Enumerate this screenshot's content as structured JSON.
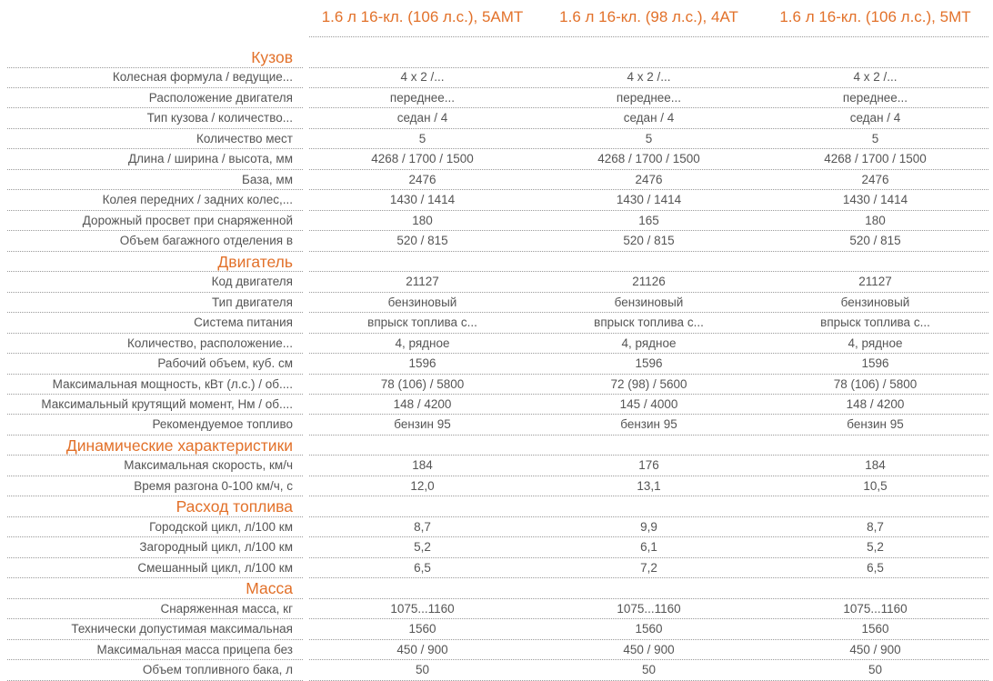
{
  "columns": [
    "1.6 л 16-кл. (106 л.с.), 5АМТ",
    "1.6 л 16-кл. (98 л.с.), 4АТ",
    "1.6 л 16-кл. (106 л.с.), 5МТ"
  ],
  "accent_color": "#e2712a",
  "sections": [
    {
      "title": "Кузов",
      "rows": [
        {
          "label": "Колесная формула / ведущие...",
          "values": [
            "4 x 2 /...",
            "4 x 2 /...",
            "4 x 2 /..."
          ]
        },
        {
          "label": "Расположение двигателя",
          "values": [
            "переднее...",
            "переднее...",
            "переднее..."
          ]
        },
        {
          "label": "Тип кузова / количество...",
          "values": [
            "седан / 4",
            "седан / 4",
            "седан / 4"
          ]
        },
        {
          "label": "Количество мест",
          "values": [
            "5",
            "5",
            "5"
          ]
        },
        {
          "label": "Длина / ширина / высота, мм",
          "values": [
            "4268 / 1700 / 1500",
            "4268 / 1700 / 1500",
            "4268 / 1700 / 1500"
          ]
        },
        {
          "label": "База, мм",
          "values": [
            "2476",
            "2476",
            "2476"
          ]
        },
        {
          "label": "Колея передних / задних колес,...",
          "values": [
            "1430 / 1414",
            "1430 / 1414",
            "1430 / 1414"
          ]
        },
        {
          "label": "Дорожный просвет при снаряженной",
          "values": [
            "180",
            "165",
            "180"
          ]
        },
        {
          "label": "Объем багажного отделения в",
          "values": [
            "520 / 815",
            "520 / 815",
            "520 / 815"
          ]
        }
      ]
    },
    {
      "title": "Двигатель",
      "rows": [
        {
          "label": "Код двигателя",
          "values": [
            "21127",
            "21126",
            "21127"
          ]
        },
        {
          "label": "Тип двигателя",
          "values": [
            "бензиновый",
            "бензиновый",
            "бензиновый"
          ]
        },
        {
          "label": "Система питания",
          "values": [
            "впрыск топлива с...",
            "впрыск топлива с...",
            "впрыск топлива с..."
          ]
        },
        {
          "label": "Количество, расположение...",
          "values": [
            "4, рядное",
            "4, рядное",
            "4, рядное"
          ]
        },
        {
          "label": "Рабочий объем, куб. см",
          "values": [
            "1596",
            "1596",
            "1596"
          ]
        },
        {
          "label": "Максимальная мощность, кВт (л.с.) / об....",
          "values": [
            "78 (106) / 5800",
            "72 (98) / 5600",
            "78 (106) / 5800"
          ]
        },
        {
          "label": "Максимальный крутящий момент, Нм / об....",
          "values": [
            "148 / 4200",
            "145 / 4000",
            "148 / 4200"
          ]
        },
        {
          "label": "Рекомендуемое топливо",
          "values": [
            "бензин 95",
            "бензин 95",
            "бензин 95"
          ]
        }
      ]
    },
    {
      "title": "Динамические характеристики",
      "rows": [
        {
          "label": "Максимальная скорость, км/ч",
          "values": [
            "184",
            "176",
            "184"
          ]
        },
        {
          "label": "Время разгона 0-100 км/ч, с",
          "values": [
            "12,0",
            "13,1",
            "10,5"
          ]
        }
      ]
    },
    {
      "title": "Расход топлива",
      "rows": [
        {
          "label": "Городской цикл, л/100 км",
          "values": [
            "8,7",
            "9,9",
            "8,7"
          ]
        },
        {
          "label": "Загородный цикл, л/100 км",
          "values": [
            "5,2",
            "6,1",
            "5,2"
          ]
        },
        {
          "label": "Смешанный цикл, л/100 км",
          "values": [
            "6,5",
            "7,2",
            "6,5"
          ]
        }
      ]
    },
    {
      "title": "Масса",
      "rows": [
        {
          "label": "Снаряженная масса, кг",
          "values": [
            "1075...1160",
            "1075...1160",
            "1075...1160"
          ]
        },
        {
          "label": "Технически допустимая максимальная",
          "values": [
            "1560",
            "1560",
            "1560"
          ]
        },
        {
          "label": "Максимальная масса прицепа без",
          "values": [
            "450 / 900",
            "450 / 900",
            "450 / 900"
          ]
        },
        {
          "label": "Объем топливного бака, л",
          "values": [
            "50",
            "50",
            "50"
          ]
        }
      ]
    }
  ]
}
